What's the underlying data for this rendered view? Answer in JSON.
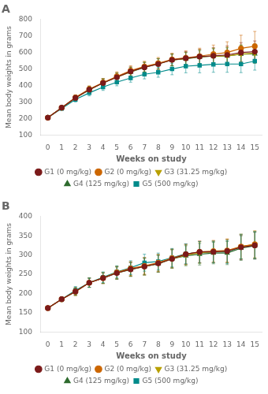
{
  "chart_data": [
    {
      "type": "line",
      "title": "A",
      "x": [
        0,
        1,
        2,
        3,
        4,
        5,
        6,
        7,
        8,
        9,
        10,
        11,
        12,
        13,
        14,
        15
      ],
      "xlim": [
        -0.5,
        15.5
      ],
      "xticks": [
        0,
        1,
        2,
        3,
        4,
        5,
        6,
        7,
        8,
        9,
        10,
        11,
        12,
        13,
        14,
        15
      ],
      "ylim": [
        100,
        800
      ],
      "yticks": [
        100,
        200,
        300,
        400,
        500,
        600,
        700,
        800
      ],
      "xlabel": "Weeks on study",
      "ylabel": "Mean body weights in grams",
      "grid": false,
      "legend": "bottom",
      "series": [
        {
          "name": "G1 (0 mg/kg)",
          "color": "#7B1A1A",
          "marker": "circle",
          "values": [
            205,
            265,
            325,
            375,
            415,
            450,
            485,
            510,
            530,
            555,
            565,
            575,
            580,
            585,
            600,
            605
          ],
          "errors": [
            5,
            10,
            15,
            20,
            25,
            25,
            28,
            30,
            32,
            35,
            40,
            45,
            50,
            55,
            60,
            65
          ]
        },
        {
          "name": "G2 (0 mg/kg)",
          "color": "#CC6600",
          "marker": "circle",
          "values": [
            205,
            265,
            328,
            378,
            418,
            455,
            490,
            515,
            535,
            558,
            568,
            578,
            590,
            600,
            625,
            638
          ],
          "errors": [
            5,
            10,
            15,
            20,
            25,
            28,
            30,
            32,
            35,
            38,
            42,
            48,
            55,
            65,
            80,
            90
          ]
        },
        {
          "name": "G3 (31.25 mg/kg)",
          "color": "#B8A000",
          "marker": "triangle_down",
          "values": [
            205,
            265,
            325,
            375,
            415,
            452,
            483,
            512,
            532,
            555,
            563,
            575,
            578,
            580,
            590,
            595
          ],
          "errors": [
            5,
            10,
            15,
            20,
            25,
            25,
            28,
            30,
            32,
            35,
            38,
            42,
            48,
            52,
            55,
            58
          ]
        },
        {
          "name": "G4 (125 mg/kg)",
          "color": "#2E6B2E",
          "marker": "triangle",
          "values": [
            205,
            265,
            325,
            372,
            415,
            450,
            482,
            510,
            530,
            555,
            562,
            572,
            578,
            578,
            590,
            592
          ],
          "errors": [
            5,
            10,
            15,
            20,
            25,
            25,
            28,
            30,
            32,
            35,
            38,
            40,
            45,
            50,
            55,
            58
          ]
        },
        {
          "name": "G5 (500 mg/kg)",
          "color": "#008B8B",
          "marker": "square",
          "values": [
            205,
            260,
            315,
            355,
            390,
            420,
            445,
            468,
            480,
            500,
            517,
            522,
            528,
            530,
            530,
            548
          ],
          "errors": [
            5,
            10,
            15,
            18,
            20,
            22,
            25,
            28,
            30,
            35,
            40,
            45,
            48,
            50,
            52,
            55
          ]
        }
      ]
    },
    {
      "type": "line",
      "title": "B",
      "x": [
        0,
        1,
        2,
        3,
        4,
        5,
        6,
        7,
        8,
        9,
        10,
        11,
        12,
        13,
        14,
        15
      ],
      "xlim": [
        -0.5,
        15.5
      ],
      "xticks": [
        0,
        1,
        2,
        3,
        4,
        5,
        6,
        7,
        8,
        9,
        10,
        11,
        12,
        13,
        14,
        15
      ],
      "ylim": [
        100,
        400
      ],
      "yticks": [
        100,
        150,
        200,
        250,
        300,
        350,
        400
      ],
      "xlabel": "Weeks on study",
      "ylabel": "Mean body weights in grams",
      "grid": false,
      "legend": "bottom",
      "series": [
        {
          "name": "G1 (0 mg/kg)",
          "color": "#7B1A1A",
          "marker": "circle",
          "values": [
            162,
            185,
            205,
            228,
            240,
            253,
            263,
            270,
            278,
            290,
            302,
            308,
            308,
            310,
            320,
            325
          ],
          "errors": [
            2,
            6,
            10,
            12,
            14,
            16,
            18,
            22,
            22,
            24,
            26,
            28,
            28,
            30,
            32,
            35
          ]
        },
        {
          "name": "G2 (0 mg/kg)",
          "color": "#CC6600",
          "marker": "circle",
          "values": [
            162,
            185,
            205,
            228,
            240,
            255,
            265,
            272,
            280,
            292,
            302,
            308,
            310,
            312,
            322,
            328
          ],
          "errors": [
            2,
            6,
            10,
            12,
            14,
            16,
            18,
            22,
            22,
            24,
            26,
            28,
            28,
            30,
            32,
            35
          ]
        },
        {
          "name": "G3 (31.25 mg/kg)",
          "color": "#B8A000",
          "marker": "triangle_down",
          "values": [
            162,
            185,
            205,
            228,
            240,
            254,
            263,
            270,
            278,
            290,
            300,
            306,
            308,
            310,
            322,
            327
          ],
          "errors": [
            2,
            6,
            10,
            12,
            14,
            16,
            18,
            22,
            22,
            24,
            26,
            28,
            28,
            30,
            32,
            35
          ]
        },
        {
          "name": "G4 (125 mg/kg)",
          "color": "#2E6B2E",
          "marker": "triangle",
          "values": [
            162,
            185,
            205,
            228,
            240,
            253,
            262,
            270,
            277,
            290,
            298,
            302,
            305,
            305,
            318,
            324
          ],
          "errors": [
            2,
            6,
            10,
            12,
            14,
            16,
            18,
            22,
            22,
            24,
            26,
            28,
            28,
            30,
            32,
            35
          ]
        },
        {
          "name": "G5 (500 mg/kg)",
          "color": "#008B8B",
          "marker": "square",
          "values": [
            162,
            185,
            208,
            228,
            242,
            256,
            267,
            280,
            283,
            293,
            303,
            307,
            308,
            308,
            322,
            326
          ],
          "errors": [
            2,
            6,
            10,
            12,
            14,
            16,
            18,
            22,
            22,
            24,
            26,
            28,
            28,
            30,
            32,
            35
          ]
        }
      ]
    }
  ]
}
